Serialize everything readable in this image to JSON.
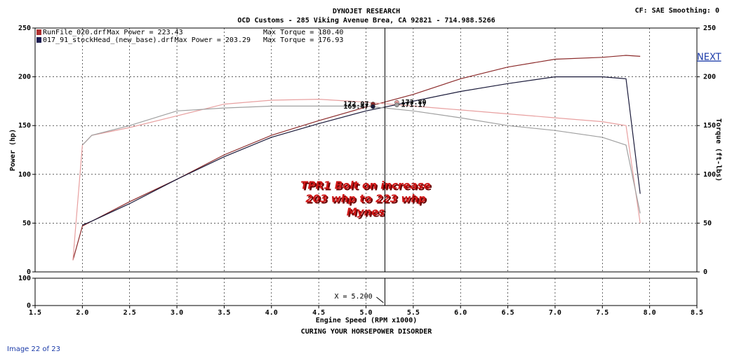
{
  "chart_data": {
    "type": "line",
    "title": "DYNOJET RESEARCH",
    "subtitle": "OCD Customs - 285 Viking Avenue Brea, CA 92821 - 714.988.5266",
    "settings_label": "CF: SAE  Smoothing: 0",
    "footer": "CURING YOUR HORSEPOWER DISORDER",
    "xlabel": "Engine Speed (RPM x1000)",
    "ylabel": "Power (hp)",
    "y2label": "Torque (ft-lbs)",
    "runs": [
      {
        "file": "RunFile_020.drf",
        "max_power": "Max Power = 223.43",
        "max_torque": "Max Torque = 180.40",
        "color": "#b03030"
      },
      {
        "file": "017_91_stockHead_(new_base).drf",
        "max_power": "Max Power = 203.29",
        "max_torque": "Max Torque = 176.93",
        "color": "#1a1a50"
      }
    ],
    "annotations": [
      "TPR1 Bolt on increase",
      "203 whp to 223 whp",
      "Mynes"
    ],
    "x": [
      1.9,
      2.0,
      2.1,
      2.5,
      3.0,
      3.5,
      4.0,
      4.5,
      5.0,
      5.5,
      6.0,
      6.5,
      7.0,
      7.5,
      7.75,
      7.9
    ],
    "series": [
      {
        "color": "#8b2a2a",
        "values": [
          12,
          47,
          52,
          72,
          95,
          120,
          140,
          155,
          169,
          182,
          198,
          210,
          218,
          220,
          222,
          221
        ]
      },
      {
        "color": "#e8a0a0",
        "axis": "y2",
        "values": [
          12,
          130,
          140,
          148,
          160,
          172,
          176,
          177,
          174,
          170,
          166,
          162,
          158,
          154,
          150,
          50
        ]
      },
      {
        "color": "#1a1a3a",
        "values": [
          null,
          48,
          52,
          70,
          95,
          118,
          138,
          152,
          165,
          175,
          185,
          193,
          200,
          200,
          198,
          80
        ]
      },
      {
        "color": "#a0a0a0",
        "axis": "y2",
        "values": [
          null,
          130,
          140,
          150,
          165,
          168,
          170,
          170,
          170,
          165,
          158,
          150,
          145,
          138,
          130,
          60
        ]
      }
    ],
    "cursor": {
      "x": 5.2,
      "label": "X = 5.200",
      "values": [
        172.07,
        173.8,
        169.47,
        171.17
      ],
      "value_labels": [
        "172.07",
        "173.80",
        "169.47",
        "171.17"
      ]
    },
    "xlim": [
      1.5,
      8.5
    ],
    "xticks": [
      1.5,
      {
        "value": 2,
        "label": "2.0"
      },
      2.5,
      {
        "value": 3,
        "label": "3.0"
      },
      3.5,
      {
        "value": 4,
        "label": "4.0"
      },
      4.5,
      {
        "value": 5,
        "label": "5.0"
      },
      5.5,
      {
        "value": 6,
        "label": "6.0"
      },
      6.5,
      {
        "value": 7,
        "label": "7.0"
      },
      7.5,
      {
        "value": 8,
        "label": "8.0"
      },
      8.5
    ],
    "ylim": [
      0,
      250
    ],
    "yticks": [
      0,
      50,
      100,
      150,
      200,
      250
    ],
    "y2lim": [
      0,
      250
    ],
    "y2ticks": [
      0,
      50,
      100,
      150,
      200,
      250
    ],
    "lower_ylim": [
      0,
      100
    ],
    "lower_yticks": [
      0,
      100
    ],
    "grid": true
  },
  "nav": {
    "next": "NEXT",
    "caption": "Image 22 of 23"
  }
}
